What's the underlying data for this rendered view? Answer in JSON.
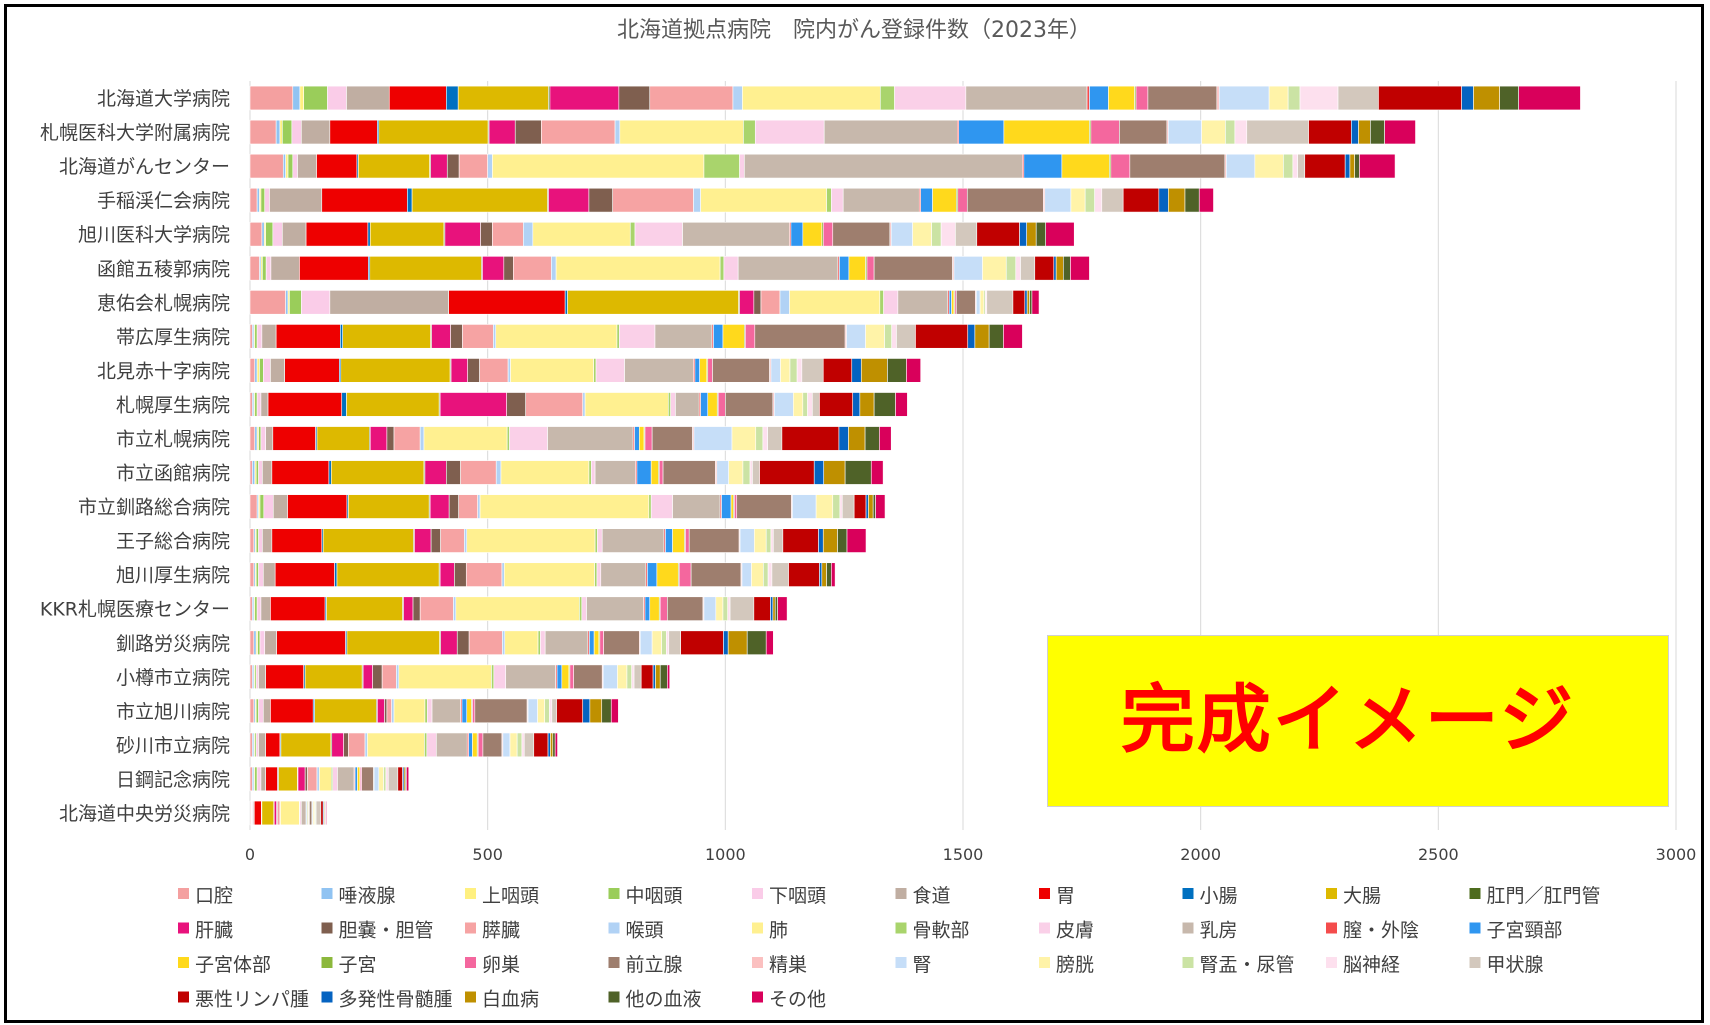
{
  "chart_data": {
    "type": "bar",
    "orientation": "horizontal",
    "stacked": true,
    "title": "北海道拠点病院　院内がん登録件数（2023年）",
    "xlim": [
      0,
      3000
    ],
    "xticks": [
      "0",
      "500",
      "1000",
      "1500",
      "2000",
      "2500",
      "3000"
    ],
    "grid": true,
    "legend_position": "bottom",
    "categories": [
      "北海道大学病院",
      "札幌医科大学附属病院",
      "北海道がんセンター",
      "手稲渓仁会病院",
      "旭川医科大学病院",
      "函館五稜郭病院",
      "恵佑会札幌病院",
      "帯広厚生病院",
      "北見赤十字病院",
      "札幌厚生病院",
      "市立札幌病院",
      "市立函館病院",
      "市立釧路総合病院",
      "王子総合病院",
      "旭川厚生病院",
      "KKR札幌医療センター",
      "釧路労災病院",
      "小樽市立病院",
      "市立旭川病院",
      "砂川市立病院",
      "日鋼記念病院",
      "北海道中央労災病院"
    ],
    "series": [
      {
        "name": "口腔",
        "color": "#F4A0A0",
        "values": [
          90,
          55,
          70,
          15,
          25,
          20,
          75,
          5,
          10,
          5,
          10,
          5,
          15,
          8,
          8,
          5,
          8,
          5,
          8,
          5,
          5,
          2
        ]
      },
      {
        "name": "唾液腺",
        "color": "#90C3F2",
        "values": [
          15,
          8,
          5,
          5,
          5,
          3,
          5,
          3,
          5,
          3,
          5,
          5,
          3,
          3,
          3,
          3,
          5,
          3,
          3,
          3,
          3,
          1
        ]
      },
      {
        "name": "上咽頭",
        "color": "#FFF080",
        "values": [
          8,
          5,
          5,
          3,
          3,
          3,
          3,
          2,
          5,
          2,
          3,
          3,
          3,
          2,
          2,
          2,
          3,
          2,
          2,
          2,
          2,
          1
        ]
      },
      {
        "name": "中咽頭",
        "color": "#9ACD5A",
        "values": [
          50,
          20,
          10,
          8,
          15,
          8,
          25,
          5,
          8,
          5,
          5,
          5,
          8,
          5,
          5,
          5,
          5,
          3,
          5,
          3,
          5,
          1
        ]
      },
      {
        "name": "下咽頭",
        "color": "#FACCE8",
        "values": [
          40,
          20,
          10,
          10,
          20,
          10,
          60,
          10,
          15,
          8,
          10,
          8,
          20,
          8,
          10,
          8,
          10,
          5,
          10,
          5,
          8,
          2
        ]
      },
      {
        "name": "食道",
        "color": "#C0AEA2",
        "values": [
          90,
          60,
          40,
          110,
          50,
          60,
          250,
          30,
          30,
          15,
          15,
          20,
          30,
          20,
          25,
          20,
          25,
          15,
          15,
          15,
          10,
          2
        ]
      },
      {
        "name": "胃",
        "color": "#EE0000",
        "values": [
          120,
          100,
          85,
          180,
          130,
          145,
          245,
          135,
          115,
          155,
          90,
          120,
          125,
          105,
          125,
          115,
          145,
          80,
          90,
          30,
          25,
          15
        ]
      },
      {
        "name": "小腸",
        "color": "#0070C0",
        "values": [
          25,
          3,
          3,
          10,
          5,
          3,
          5,
          5,
          3,
          10,
          3,
          5,
          3,
          3,
          5,
          3,
          3,
          3,
          3,
          2,
          2,
          1
        ]
      },
      {
        "name": "大腸",
        "color": "#DDB900",
        "values": [
          190,
          230,
          150,
          285,
          155,
          235,
          360,
          185,
          230,
          195,
          110,
          195,
          170,
          190,
          215,
          160,
          195,
          120,
          130,
          105,
          40,
          25
        ]
      },
      {
        "name": "肛門／肛門管",
        "color": "#4E6C1E",
        "values": [
          3,
          2,
          2,
          2,
          2,
          2,
          2,
          2,
          2,
          2,
          2,
          2,
          2,
          2,
          2,
          2,
          2,
          2,
          2,
          2,
          1,
          1
        ]
      },
      {
        "name": "肝臓",
        "color": "#E8127C",
        "values": [
          145,
          55,
          35,
          85,
          75,
          45,
          30,
          40,
          35,
          140,
          35,
          45,
          40,
          35,
          30,
          20,
          35,
          20,
          15,
          25,
          15,
          5
        ]
      },
      {
        "name": "胆嚢・胆管",
        "color": "#7F5F4F",
        "values": [
          65,
          55,
          25,
          50,
          25,
          20,
          15,
          25,
          25,
          40,
          15,
          30,
          20,
          20,
          25,
          15,
          25,
          20,
          5,
          10,
          5,
          2
        ]
      },
      {
        "name": "膵臓",
        "color": "#F6A3A3",
        "values": [
          175,
          155,
          60,
          170,
          65,
          80,
          40,
          65,
          60,
          120,
          55,
          75,
          40,
          50,
          75,
          70,
          70,
          30,
          10,
          35,
          20,
          5
        ]
      },
      {
        "name": "喉頭",
        "color": "#B1D2F5",
        "values": [
          20,
          10,
          10,
          15,
          20,
          10,
          20,
          5,
          5,
          5,
          8,
          10,
          5,
          5,
          5,
          5,
          5,
          5,
          5,
          5,
          5,
          1
        ]
      },
      {
        "name": "肺",
        "color": "#FFF090",
        "values": [
          290,
          260,
          445,
          265,
          205,
          345,
          190,
          255,
          175,
          175,
          175,
          185,
          355,
          270,
          190,
          260,
          70,
          195,
          65,
          120,
          25,
          40
        ]
      },
      {
        "name": "骨軟部",
        "color": "#A9D46C",
        "values": [
          30,
          25,
          75,
          10,
          10,
          8,
          8,
          5,
          5,
          5,
          5,
          5,
          5,
          5,
          5,
          5,
          5,
          5,
          5,
          5,
          3,
          1
        ]
      },
      {
        "name": "皮膚",
        "color": "#FAD0E8",
        "values": [
          150,
          145,
          10,
          25,
          100,
          30,
          30,
          75,
          60,
          10,
          80,
          8,
          45,
          10,
          8,
          10,
          10,
          25,
          10,
          20,
          10,
          3
        ]
      },
      {
        "name": "乳房",
        "color": "#C7B8AC",
        "values": [
          255,
          280,
          585,
          160,
          225,
          210,
          105,
          120,
          145,
          50,
          180,
          85,
          100,
          130,
          95,
          120,
          90,
          105,
          60,
          65,
          35,
          10
        ]
      },
      {
        "name": "膣・外陰",
        "color": "#F44C4C",
        "values": [
          5,
          3,
          3,
          3,
          3,
          3,
          3,
          3,
          3,
          3,
          3,
          3,
          3,
          3,
          3,
          3,
          3,
          3,
          3,
          3,
          2,
          1
        ]
      },
      {
        "name": "子宮頸部",
        "color": "#2F96F0",
        "values": [
          40,
          95,
          80,
          25,
          25,
          20,
          5,
          20,
          10,
          15,
          10,
          30,
          20,
          15,
          20,
          10,
          10,
          10,
          10,
          8,
          5,
          2
        ]
      },
      {
        "name": "子宮体部",
        "color": "#FFD91C",
        "values": [
          55,
          180,
          100,
          50,
          40,
          35,
          5,
          45,
          15,
          20,
          10,
          15,
          5,
          25,
          45,
          20,
          10,
          15,
          10,
          10,
          5,
          2
        ]
      },
      {
        "name": "子宮",
        "color": "#8CB83C",
        "values": [
          3,
          3,
          3,
          3,
          3,
          3,
          2,
          2,
          2,
          2,
          2,
          2,
          2,
          2,
          2,
          2,
          2,
          2,
          2,
          2,
          1,
          1
        ]
      },
      {
        "name": "卵巣",
        "color": "#F4679E",
        "values": [
          25,
          60,
          40,
          20,
          20,
          15,
          3,
          20,
          10,
          15,
          15,
          8,
          5,
          8,
          25,
          15,
          8,
          8,
          5,
          10,
          3,
          1
        ]
      },
      {
        "name": "前立腺",
        "color": "#9E7E6E",
        "values": [
          145,
          100,
          200,
          160,
          120,
          165,
          40,
          190,
          120,
          100,
          85,
          110,
          115,
          105,
          105,
          75,
          75,
          60,
          110,
          40,
          25,
          5
        ]
      },
      {
        "name": "精巣",
        "color": "#FBC0C0",
        "values": [
          5,
          3,
          3,
          3,
          3,
          3,
          2,
          3,
          3,
          3,
          3,
          3,
          2,
          2,
          2,
          2,
          2,
          2,
          2,
          2,
          1,
          1
        ]
      },
      {
        "name": "腎",
        "color": "#C6DEF8",
        "values": [
          105,
          70,
          60,
          55,
          45,
          60,
          8,
          40,
          20,
          40,
          80,
          25,
          50,
          30,
          20,
          25,
          25,
          30,
          20,
          15,
          10,
          2
        ]
      },
      {
        "name": "膀胱",
        "color": "#FFF3A8",
        "values": [
          40,
          50,
          60,
          30,
          40,
          50,
          8,
          40,
          20,
          20,
          50,
          30,
          35,
          25,
          25,
          15,
          20,
          20,
          15,
          15,
          10,
          3
        ]
      },
      {
        "name": "腎盂・尿管",
        "color": "#CBE3A4",
        "values": [
          25,
          20,
          20,
          20,
          20,
          20,
          3,
          15,
          15,
          10,
          15,
          15,
          15,
          10,
          10,
          10,
          10,
          10,
          10,
          10,
          5,
          2
        ]
      },
      {
        "name": "脳神経",
        "color": "#FDE0EE",
        "values": [
          80,
          25,
          10,
          15,
          30,
          10,
          3,
          10,
          10,
          10,
          10,
          5,
          5,
          5,
          8,
          5,
          5,
          5,
          5,
          5,
          5,
          1
        ]
      },
      {
        "name": "甲状腺",
        "color": "#D3C8BD",
        "values": [
          85,
          130,
          15,
          45,
          45,
          30,
          55,
          40,
          45,
          15,
          30,
          15,
          25,
          20,
          35,
          50,
          25,
          15,
          10,
          20,
          20,
          10
        ]
      },
      {
        "name": "悪性リンパ腫",
        "color": "#C00000",
        "values": [
          175,
          90,
          85,
          75,
          90,
          40,
          25,
          110,
          60,
          70,
          120,
          115,
          25,
          75,
          65,
          35,
          90,
          25,
          55,
          30,
          10,
          5
        ]
      },
      {
        "name": "多発性骨髄腫",
        "color": "#0563C1",
        "values": [
          25,
          15,
          10,
          20,
          15,
          5,
          5,
          15,
          20,
          15,
          20,
          20,
          5,
          10,
          5,
          5,
          10,
          5,
          15,
          5,
          3,
          2
        ]
      },
      {
        "name": "白血病",
        "color": "#BF9000",
        "values": [
          55,
          25,
          10,
          35,
          20,
          15,
          5,
          30,
          55,
          30,
          35,
          45,
          10,
          30,
          10,
          5,
          40,
          10,
          25,
          5,
          3,
          2
        ]
      },
      {
        "name": "他の血液",
        "color": "#4F6228",
        "values": [
          40,
          30,
          10,
          30,
          20,
          15,
          5,
          30,
          40,
          45,
          30,
          55,
          5,
          20,
          10,
          5,
          40,
          15,
          20,
          5,
          2,
          1
        ]
      },
      {
        "name": "その他",
        "color": "#D9005B",
        "values": [
          130,
          65,
          75,
          30,
          60,
          40,
          15,
          40,
          30,
          25,
          25,
          25,
          20,
          40,
          8,
          20,
          15,
          5,
          15,
          5,
          5,
          2
        ]
      }
    ]
  },
  "overlay": {
    "label": "完成イメージ"
  }
}
